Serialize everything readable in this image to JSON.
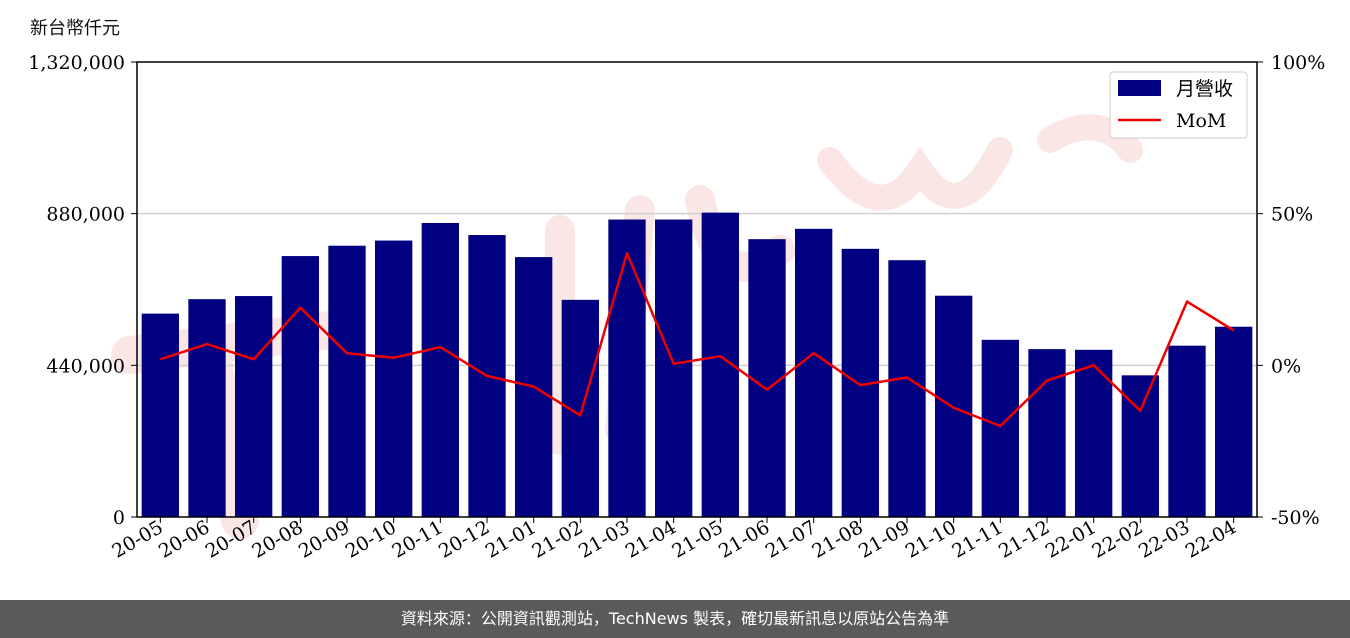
{
  "chart_data": {
    "type": "bar",
    "ylabel": "新台幣仟元",
    "categories": [
      "20-05",
      "20-06",
      "20-07",
      "20-08",
      "20-09",
      "20-10",
      "20-11",
      "20-12",
      "21-01",
      "21-02",
      "21-03",
      "21-04",
      "21-05",
      "21-06",
      "21-07",
      "21-08",
      "21-09",
      "21-10",
      "21-11",
      "21-12",
      "22-01",
      "22-02",
      "22-03",
      "22-04"
    ],
    "series": [
      {
        "name": "月營收",
        "axis": "left",
        "color": "#000080",
        "values": [
          590000,
          632000,
          641000,
          757000,
          787000,
          802000,
          853000,
          818000,
          754000,
          630000,
          863000,
          863000,
          883000,
          806000,
          836000,
          778000,
          745000,
          642000,
          514000,
          487000,
          485000,
          411000,
          497000,
          552000
        ]
      },
      {
        "name": "MoM",
        "axis": "right",
        "color": "#ee0000",
        "values": [
          2.0,
          7.0,
          2.0,
          19.0,
          4.0,
          2.5,
          6.0,
          -3.5,
          -7.0,
          -16.5,
          37.0,
          0.5,
          3.0,
          -8.0,
          4.0,
          -6.5,
          -4.0,
          -14.0,
          -20.0,
          -5.0,
          0.0,
          -15.0,
          21.0,
          11.5
        ]
      }
    ],
    "y_left": {
      "range": [
        0,
        1320000
      ],
      "ticks": [
        "0",
        "440,000",
        "880,000",
        "1,320,000"
      ]
    },
    "y_right": {
      "range": [
        -50,
        100
      ],
      "ticks": [
        "-50%",
        "0%",
        "50%",
        "100%"
      ]
    },
    "grid": "horizontal",
    "legend": "top-right"
  },
  "footer": {
    "text": "資料來源：公開資訊觀測站，TechNews 製表，確切最新訊息以原站公告為準"
  }
}
